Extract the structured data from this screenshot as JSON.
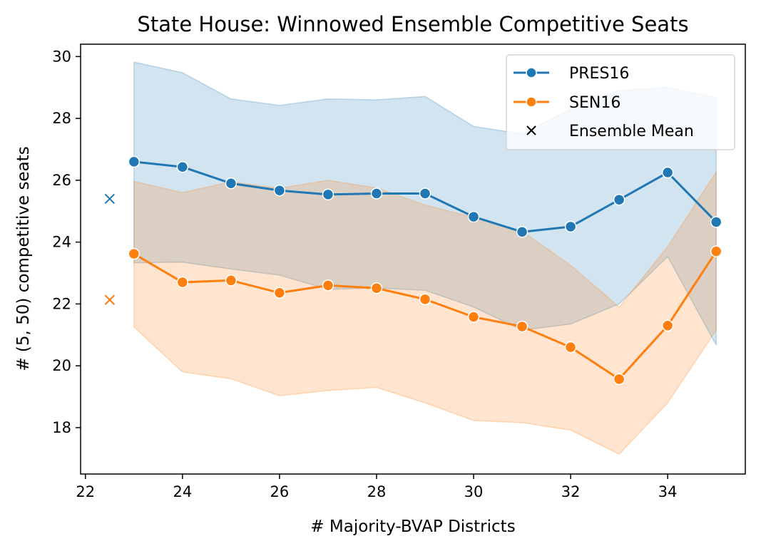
{
  "chart_data": {
    "type": "line",
    "title": "State House: Winnowed Ensemble Competitive Seats",
    "xlabel": "# Majority-BVAP Districts",
    "ylabel": "# (5, 50) competitive seats",
    "xlim": [
      21.9,
      35.6
    ],
    "ylim": [
      16.5,
      30.4
    ],
    "xticks": [
      22,
      24,
      26,
      28,
      30,
      32,
      34
    ],
    "yticks": [
      18,
      20,
      22,
      24,
      26,
      28,
      30
    ],
    "grid": false,
    "legend_position": "top-right",
    "x": [
      23,
      24,
      25,
      26,
      27,
      28,
      29,
      30,
      31,
      32,
      33,
      34,
      35
    ],
    "series": [
      {
        "name": "PRES16",
        "color": "#1f77b4",
        "values": [
          26.6,
          26.43,
          25.9,
          25.67,
          25.54,
          25.57,
          25.57,
          24.82,
          24.33,
          24.5,
          25.37,
          26.25,
          24.65
        ],
        "band_upper": [
          29.82,
          29.48,
          28.63,
          28.42,
          28.63,
          28.6,
          28.71,
          27.74,
          27.5,
          28.3,
          28.9,
          29.0,
          28.67
        ],
        "band_lower": [
          23.33,
          23.35,
          23.13,
          22.93,
          22.47,
          22.52,
          22.44,
          21.9,
          21.15,
          21.35,
          22.0,
          23.53,
          20.67
        ]
      },
      {
        "name": "SEN16",
        "color": "#ff7f0e",
        "values": [
          23.62,
          22.7,
          22.76,
          22.36,
          22.6,
          22.51,
          22.15,
          21.58,
          21.27,
          20.6,
          19.57,
          21.3,
          23.7
        ],
        "band_upper": [
          25.96,
          25.6,
          25.95,
          25.74,
          26.0,
          25.75,
          25.2,
          24.8,
          24.35,
          23.25,
          21.9,
          23.85,
          26.27
        ],
        "band_lower": [
          21.25,
          19.8,
          19.58,
          19.03,
          19.2,
          19.3,
          18.8,
          18.23,
          18.16,
          17.92,
          17.14,
          18.8,
          21.15
        ]
      }
    ],
    "ensemble_mean": {
      "label": "Ensemble Mean",
      "x": 22.5,
      "points": [
        {
          "series": "PRES16",
          "y": 25.4,
          "color": "#1f77b4"
        },
        {
          "series": "SEN16",
          "y": 22.13,
          "color": "#ff7f0e"
        }
      ]
    }
  }
}
